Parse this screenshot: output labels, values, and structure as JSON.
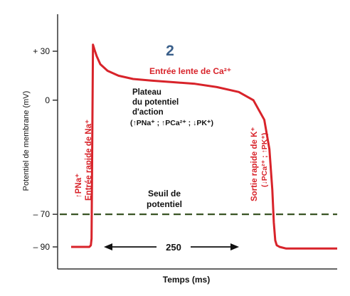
{
  "figure_label": "2",
  "colors": {
    "curve": "#d8232a",
    "axis": "#333333",
    "threshold": "#2e4a17",
    "label_red": "#d8232a",
    "label_blue": "#3a5f8a"
  },
  "annotations": {
    "slow_ca": "Entrée lente de Ca²⁺",
    "plateau_1": "Plateau",
    "plateau_2": "du potentiel",
    "plateau_3": "d'action",
    "plateau_4": "(↑PNa⁺ ; ↑PCa²⁺ ; ↓PK⁺)",
    "na_1": "↑PNa⁺",
    "na_2": "Entrée rapide de Na⁺",
    "k_1": "Sortie rapide de K⁺",
    "k_2": "(↓PCa²⁺ ; ↑PK⁺)",
    "threshold_1": "Seuil de",
    "threshold_2": "potentiel",
    "duration": "250"
  },
  "chart_data": {
    "type": "line",
    "title": "",
    "xlabel": "Temps (ms)",
    "ylabel": "Potentiel de membrane (mV)",
    "ylim": [
      -100,
      50
    ],
    "xlim": [
      -30,
      335
    ],
    "grid": false,
    "legend": "none",
    "yticks": [
      {
        "value": 30,
        "label": "+ 30"
      },
      {
        "value": 0,
        "label": "0"
      },
      {
        "value": -70,
        "label": "– 70"
      },
      {
        "value": -90,
        "label": "– 90"
      }
    ],
    "threshold": {
      "value": -70,
      "style": "dashed"
    },
    "series": [
      {
        "x": [
          -30,
          -15,
          -5,
          -3,
          -2,
          0,
          2,
          5,
          10,
          20,
          35,
          55,
          80,
          110,
          140,
          170,
          200,
          220,
          235,
          242,
          246,
          248,
          250,
          252,
          256,
          265,
          290,
          335
        ],
        "y": [
          -90,
          -90,
          -90,
          -89,
          -85,
          34,
          31,
          27,
          22,
          18,
          15,
          13,
          12,
          11,
          10,
          8,
          5,
          0,
          -12,
          -30,
          -55,
          -75,
          -86,
          -89,
          -90,
          -91,
          -91,
          -91
        ]
      }
    ]
  }
}
